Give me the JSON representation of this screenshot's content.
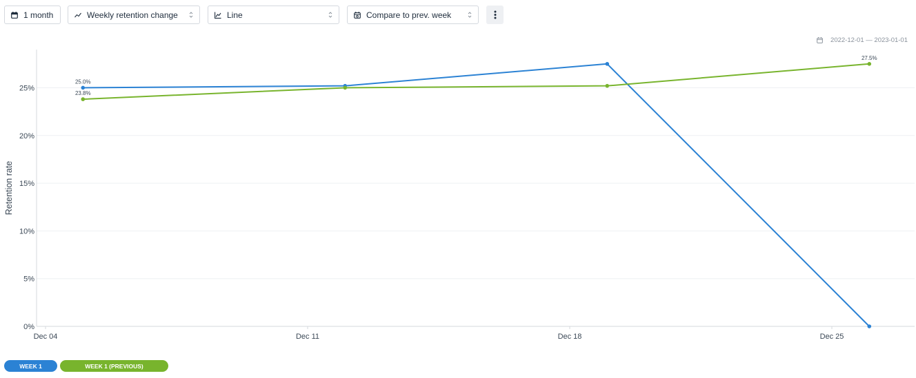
{
  "toolbar": {
    "period": {
      "label": "1 month",
      "icon": "calendar-icon"
    },
    "metric": {
      "label": "Weekly retention change",
      "icon": "trend-icon"
    },
    "chart_type": {
      "label": "Line",
      "icon": "line-chart-icon"
    },
    "compare": {
      "label": "Compare to prev. week",
      "icon": "calendar-compare-icon"
    },
    "more": {
      "icon": "more-vertical-icon"
    }
  },
  "date_range": {
    "label": "2022-12-01 — 2023-01-01",
    "icon": "calendar-icon"
  },
  "legend": [
    {
      "label": "WEEK 1",
      "color": "#2b82d4"
    },
    {
      "label": "WEEK 1 (PREVIOUS)",
      "color": "#78b42d"
    }
  ],
  "chart_data": {
    "type": "line",
    "ylabel": "Retention rate",
    "xlabel": "",
    "ylim": [
      0,
      29
    ],
    "y_ticks": [
      0,
      5,
      10,
      15,
      20,
      25
    ],
    "y_tick_labels": [
      "0%",
      "5%",
      "10%",
      "15%",
      "20%",
      "25%"
    ],
    "x_ticks": [
      "Dec 04",
      "Dec 11",
      "Dec 18",
      "Dec 25"
    ],
    "x": [
      "2022-12-05",
      "2022-12-12",
      "2022-12-19",
      "2022-12-26"
    ],
    "grid": true,
    "series": [
      {
        "name": "WEEK 1",
        "color": "#2b82d4",
        "values": [
          25.0,
          25.2,
          27.5,
          0.0
        ],
        "data_labels": [
          "25.0%",
          "",
          "",
          ""
        ]
      },
      {
        "name": "WEEK 1 (PREVIOUS)",
        "color": "#78b42d",
        "values": [
          23.8,
          25.0,
          25.2,
          27.5
        ],
        "data_labels": [
          "23.8%",
          "",
          "",
          "27.5%"
        ]
      }
    ]
  }
}
